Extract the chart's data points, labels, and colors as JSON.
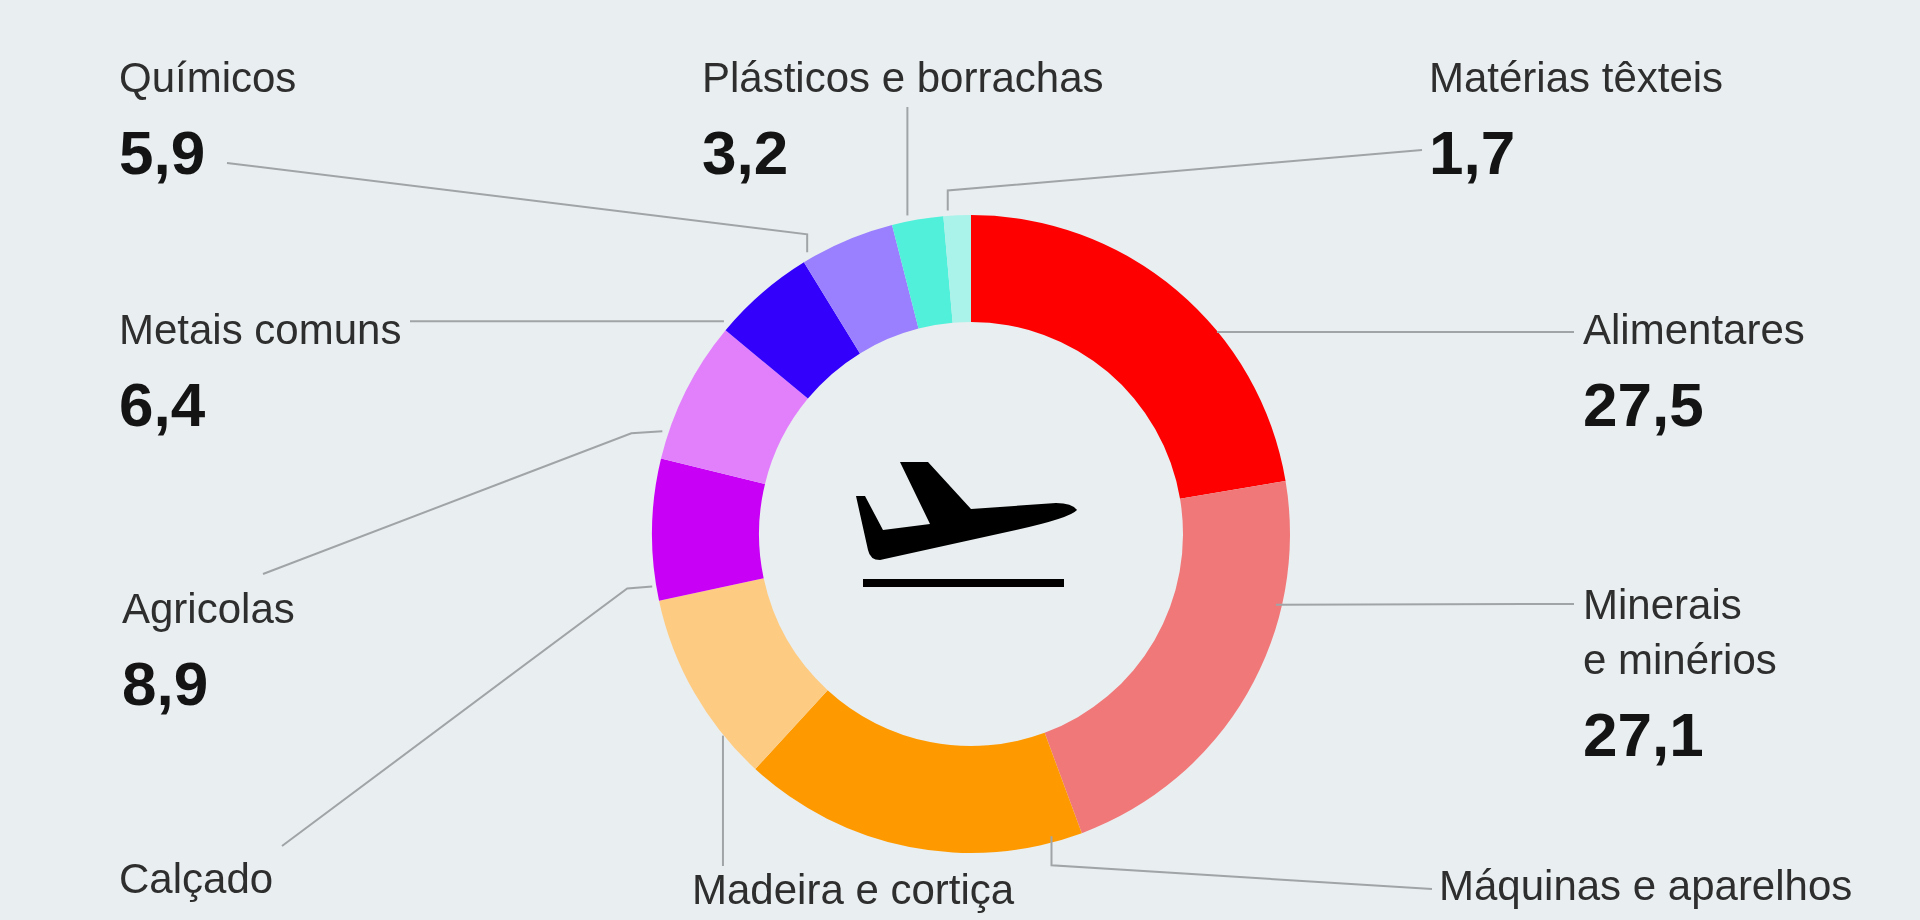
{
  "chart_data": {
    "type": "donut",
    "categories": [
      "Alimentares",
      "Minerais e minérios",
      "Máquinas e aparelhos",
      "Madeira e cortiça",
      "Calçado",
      "Agricolas",
      "Metais comuns",
      "Químicos",
      "Plásticos e borrachas",
      "Matérias têxteis"
    ],
    "values": [
      27.5,
      27.1,
      21.5,
      12.1,
      8.8,
      8.9,
      6.4,
      5.9,
      3.2,
      1.7
    ],
    "value_labels": [
      "27,5",
      "27,1",
      null,
      null,
      null,
      "8,9",
      "6,4",
      "5,9",
      "3,2",
      "1,7"
    ],
    "colors": [
      "#ff0000",
      "#f17878",
      "#fe9a00",
      "#fecb82",
      "#c900f6",
      "#e280fc",
      "#3200fb",
      "#9a80fe",
      "#50f0da",
      "#aaf3ea"
    ]
  }
}
